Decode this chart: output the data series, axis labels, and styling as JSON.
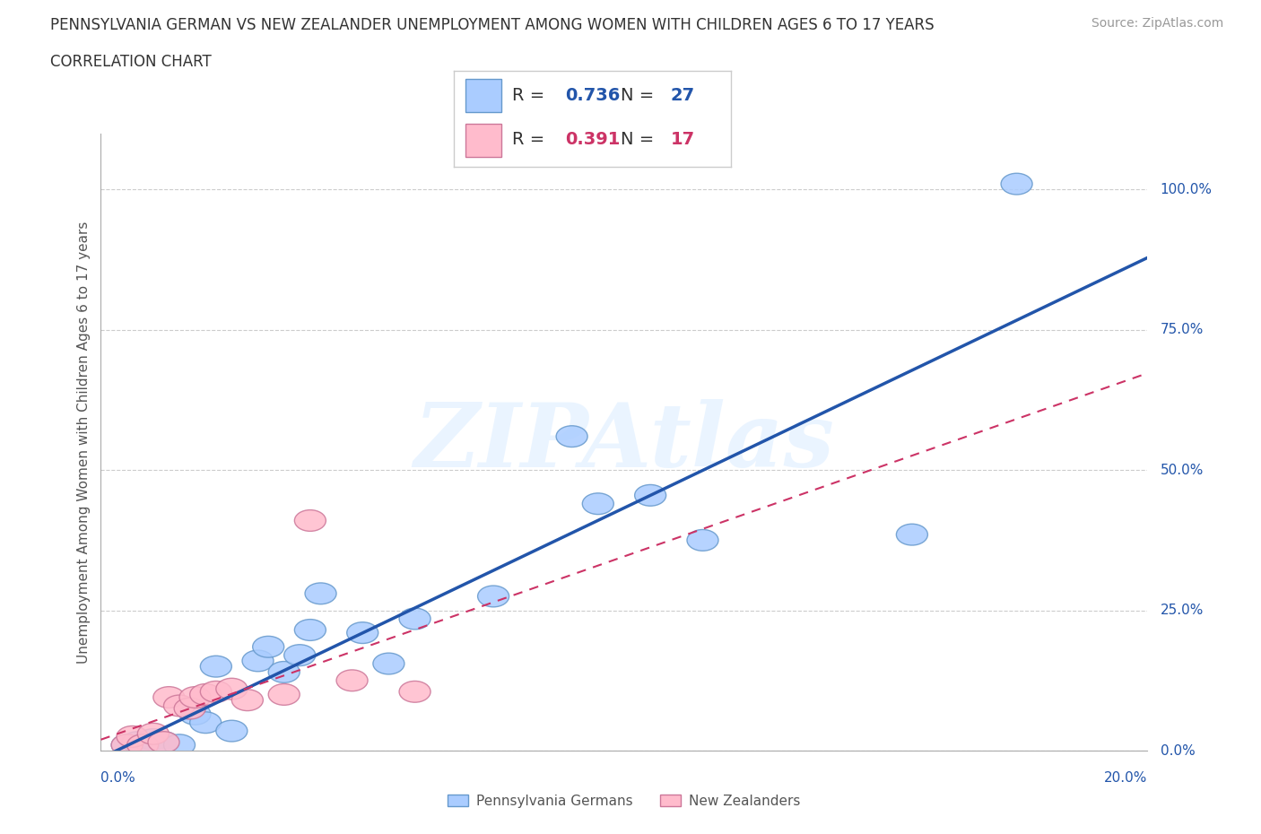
{
  "title_line1": "PENNSYLVANIA GERMAN VS NEW ZEALANDER UNEMPLOYMENT AMONG WOMEN WITH CHILDREN AGES 6 TO 17 YEARS",
  "title_line2": "CORRELATION CHART",
  "source_text": "Source: ZipAtlas.com",
  "xlabel_bottom_left": "0.0%",
  "xlabel_bottom_right": "20.0%",
  "ylabel": "Unemployment Among Women with Children Ages 6 to 17 years",
  "yticks": [
    0.0,
    0.25,
    0.5,
    0.75,
    1.0
  ],
  "ytick_labels": [
    "0.0%",
    "25.0%",
    "50.0%",
    "75.0%",
    "100.0%"
  ],
  "series1_name": "Pennsylvania Germans",
  "series1_color": "#aaccff",
  "series1_edge": "#6699cc",
  "series1_line": "#2255aa",
  "series1_R": 0.736,
  "series1_N": 27,
  "series2_name": "New Zealanders",
  "series2_color": "#ffbbcc",
  "series2_edge": "#cc7799",
  "series2_line": "#cc3366",
  "series2_R": 0.391,
  "series2_N": 17,
  "bg_color": "#ffffff",
  "grid_color": "#cccccc",
  "watermark": "ZIPAtlas",
  "pa_german_x": [
    0.005,
    0.007,
    0.008,
    0.01,
    0.01,
    0.012,
    0.015,
    0.018,
    0.02,
    0.022,
    0.025,
    0.03,
    0.032,
    0.035,
    0.038,
    0.04,
    0.042,
    0.05,
    0.055,
    0.06,
    0.075,
    0.09,
    0.095,
    0.105,
    0.115,
    0.155,
    0.175
  ],
  "pa_german_y": [
    0.01,
    0.015,
    0.005,
    0.02,
    0.008,
    0.015,
    0.01,
    0.065,
    0.05,
    0.15,
    0.035,
    0.16,
    0.185,
    0.14,
    0.17,
    0.215,
    0.28,
    0.21,
    0.155,
    0.235,
    0.275,
    0.56,
    0.44,
    0.455,
    0.375,
    0.385,
    1.01
  ],
  "nz_x": [
    0.005,
    0.006,
    0.008,
    0.01,
    0.012,
    0.013,
    0.015,
    0.017,
    0.018,
    0.02,
    0.022,
    0.025,
    0.028,
    0.035,
    0.04,
    0.048,
    0.06
  ],
  "nz_y": [
    0.01,
    0.025,
    0.01,
    0.03,
    0.015,
    0.095,
    0.08,
    0.075,
    0.095,
    0.1,
    0.105,
    0.11,
    0.09,
    0.1,
    0.41,
    0.125,
    0.105
  ],
  "xlim": [
    0.0,
    0.2
  ],
  "ylim": [
    0.0,
    1.1
  ],
  "legend_text_color": "#2255aa",
  "legend_r_label": "R = ",
  "legend_n_label": "  N = "
}
